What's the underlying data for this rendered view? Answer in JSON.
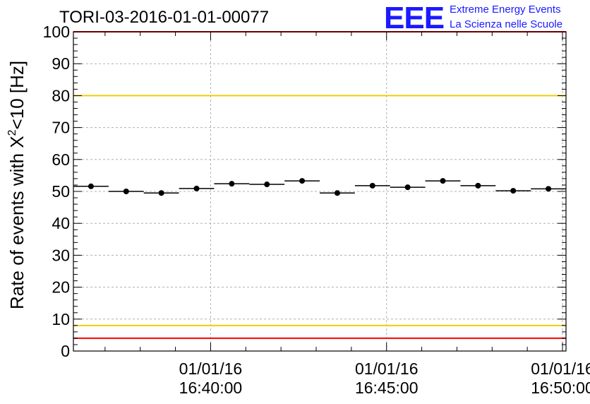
{
  "header": {
    "run_id": "TORI-03-2016-01-01-00077",
    "logo_text": "EEE",
    "logo_line1": "Extreme Energy Events",
    "logo_line2": "La Scienza nelle Scuole"
  },
  "colors": {
    "logo": "#1a1aff",
    "red_limit": "#ff0000",
    "yellow_limit": "#f2cc0c",
    "points": "#000000",
    "grid": "#b0b0b0"
  },
  "chart_data": {
    "type": "scatter",
    "title": "TORI-03-2016-01-01-00077",
    "ylabel": "Rate of events with X²<10 [Hz]",
    "ylabel_parts": {
      "base": "Rate of events with X",
      "sup": "2",
      "rest": "<10 [Hz]"
    },
    "xlabel": "",
    "ylim": [
      0,
      100
    ],
    "yticks": [
      0,
      10,
      20,
      30,
      40,
      50,
      60,
      70,
      80,
      90,
      100
    ],
    "xlim_minutes": [
      36.1,
      50.1
    ],
    "xticks": [
      {
        "minute": 40,
        "date": "01/01/16",
        "time": "16:40:00"
      },
      {
        "minute": 45,
        "date": "01/01/16",
        "time": "16:45:00"
      },
      {
        "minute": 50,
        "date": "01/01/16",
        "time": "16:50:00"
      }
    ],
    "grid": true,
    "bin_width_minutes": 1,
    "x_minutes": [
      36.6,
      37.6,
      38.6,
      39.6,
      40.6,
      41.6,
      42.6,
      43.6,
      44.6,
      45.6,
      46.6,
      47.6,
      48.6,
      49.6
    ],
    "values": [
      51.6,
      50.0,
      49.5,
      50.9,
      52.4,
      52.2,
      53.3,
      49.5,
      51.8,
      51.3,
      53.3,
      51.8,
      50.2,
      50.8
    ],
    "reference_lines": [
      {
        "name": "upper-red-limit",
        "value": 100,
        "color": "red"
      },
      {
        "name": "upper-yellow-limit",
        "value": 80,
        "color": "yellow"
      },
      {
        "name": "lower-yellow-limit",
        "value": 8,
        "color": "yellow"
      },
      {
        "name": "lower-red-limit",
        "value": 4,
        "color": "red"
      }
    ]
  }
}
